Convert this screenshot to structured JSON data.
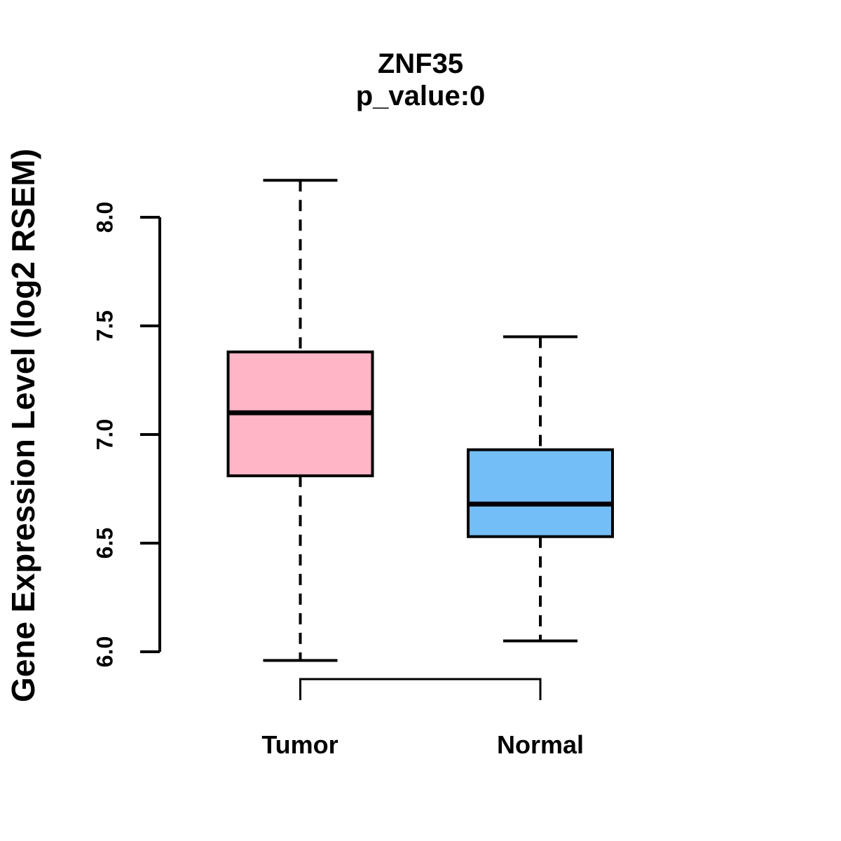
{
  "figure": {
    "title": "ZNF35",
    "subtitle": "p_value:0",
    "ylabel": "Gene Expression Level (log2 RSEM)"
  },
  "chart_data": {
    "type": "boxplot",
    "title": "ZNF35",
    "subtitle": "p_value:0",
    "ylabel": "Gene Expression Level (log2 RSEM)",
    "xlabel": "",
    "ylim": [
      5.9,
      8.2
    ],
    "yticks": [
      6.0,
      6.5,
      7.0,
      7.5,
      8.0
    ],
    "yticklabels": [
      "6.0",
      "6.5",
      "7.0",
      "7.5",
      "8.0"
    ],
    "categories": [
      "Tumor",
      "Normal"
    ],
    "grid": false,
    "legend": false,
    "series": [
      {
        "name": "Tumor",
        "color": "#FFB5C5",
        "whisker_low": 5.96,
        "q1": 6.81,
        "median": 7.1,
        "q3": 7.38,
        "whisker_high": 8.17
      },
      {
        "name": "Normal",
        "color": "#74BEF8",
        "whisker_low": 6.05,
        "q1": 6.53,
        "median": 6.68,
        "q3": 6.93,
        "whisker_high": 7.45
      }
    ],
    "annotations": {
      "comparison_bracket": {
        "between": [
          "Tumor",
          "Normal"
        ]
      }
    }
  }
}
